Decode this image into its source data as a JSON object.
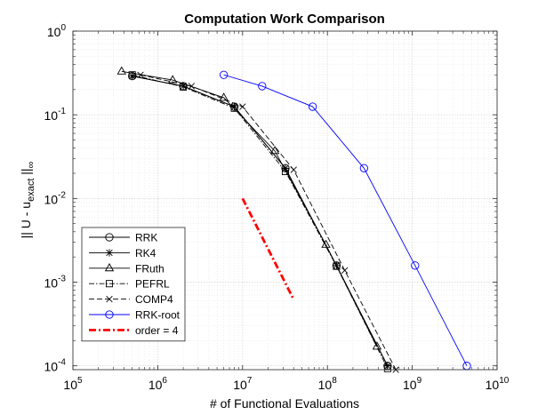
{
  "chart_data": {
    "type": "line",
    "title": "Computation Work Comparison",
    "xlabel": "# of Functional Evaluations",
    "ylabel": "|| U - u_exact ||_∞",
    "ylabel_parts": {
      "pre": "|| U - u",
      "sub": "exact",
      "mid": " ||",
      "sub2": "∞"
    },
    "xscale": "log",
    "yscale": "log",
    "xlim": [
      100000,
      10000000000
    ],
    "ylim": [
      9e-05,
      1
    ],
    "xticks": [
      {
        "value": 100000,
        "base": "10",
        "exp": "5"
      },
      {
        "value": 1000000,
        "base": "10",
        "exp": "6"
      },
      {
        "value": 10000000,
        "base": "10",
        "exp": "7"
      },
      {
        "value": 100000000,
        "base": "10",
        "exp": "8"
      },
      {
        "value": 1000000000,
        "base": "10",
        "exp": "9"
      },
      {
        "value": 10000000000,
        "base": "10",
        "exp": "10"
      }
    ],
    "yticks": [
      {
        "value": 1,
        "base": "10",
        "exp": "0"
      },
      {
        "value": 0.1,
        "base": "10",
        "exp": "-1"
      },
      {
        "value": 0.01,
        "base": "10",
        "exp": "-2"
      },
      {
        "value": 0.001,
        "base": "10",
        "exp": "-3"
      },
      {
        "value": 0.0001,
        "base": "10",
        "exp": "-4"
      }
    ],
    "grid": true,
    "minor_grid": true,
    "legend_position": "bottom-left",
    "series": [
      {
        "name": "RRK",
        "color": "#000000",
        "dash": "solid",
        "marker": "circle",
        "x": [
          500000,
          2000000,
          8000000,
          32000000,
          128000000,
          512000000
        ],
        "y": [
          0.29,
          0.22,
          0.125,
          0.023,
          0.00158,
          0.0001
        ]
      },
      {
        "name": "RK4",
        "color": "#000000",
        "dash": "solid",
        "marker": "asterisk",
        "x": [
          500000,
          2000000,
          8000000,
          32000000,
          128000000,
          512000000
        ],
        "y": [
          0.29,
          0.22,
          0.125,
          0.023,
          0.00158,
          0.0001
        ]
      },
      {
        "name": "FRuth",
        "color": "#000000",
        "dash": "solid",
        "marker": "triangle",
        "x": [
          375000,
          1500000,
          6000000,
          24000000,
          96000000,
          384000000
        ],
        "y": [
          0.33,
          0.26,
          0.16,
          0.037,
          0.0028,
          0.00017
        ]
      },
      {
        "name": "PEFRL",
        "color": "#000000",
        "dash": "dashdot",
        "marker": "square",
        "x": [
          500000,
          2000000,
          8000000,
          32000000,
          128000000,
          512000000
        ],
        "y": [
          0.3,
          0.215,
          0.12,
          0.021,
          0.00155,
          9.3e-05
        ]
      },
      {
        "name": "COMP4",
        "color": "#000000",
        "dash": "dashed",
        "marker": "x",
        "x": [
          625000,
          2500000,
          10000000,
          40000000,
          160000000,
          640000000
        ],
        "y": [
          0.3,
          0.22,
          0.125,
          0.022,
          0.00138,
          9e-05
        ]
      },
      {
        "name": "RRK-root",
        "color": "#0000ff",
        "dash": "solid",
        "marker": "circle",
        "x": [
          6000000,
          17000000,
          67000000,
          270000000,
          1080000000,
          4400000000
        ],
        "y": [
          0.3,
          0.22,
          0.125,
          0.023,
          0.00158,
          0.0001
        ]
      },
      {
        "name": "order = 4",
        "color": "#ff0000",
        "dash": "dashdot-thick",
        "marker": "none",
        "x": [
          10000000,
          40000000
        ],
        "y": [
          0.01,
          0.00062
        ]
      }
    ]
  }
}
